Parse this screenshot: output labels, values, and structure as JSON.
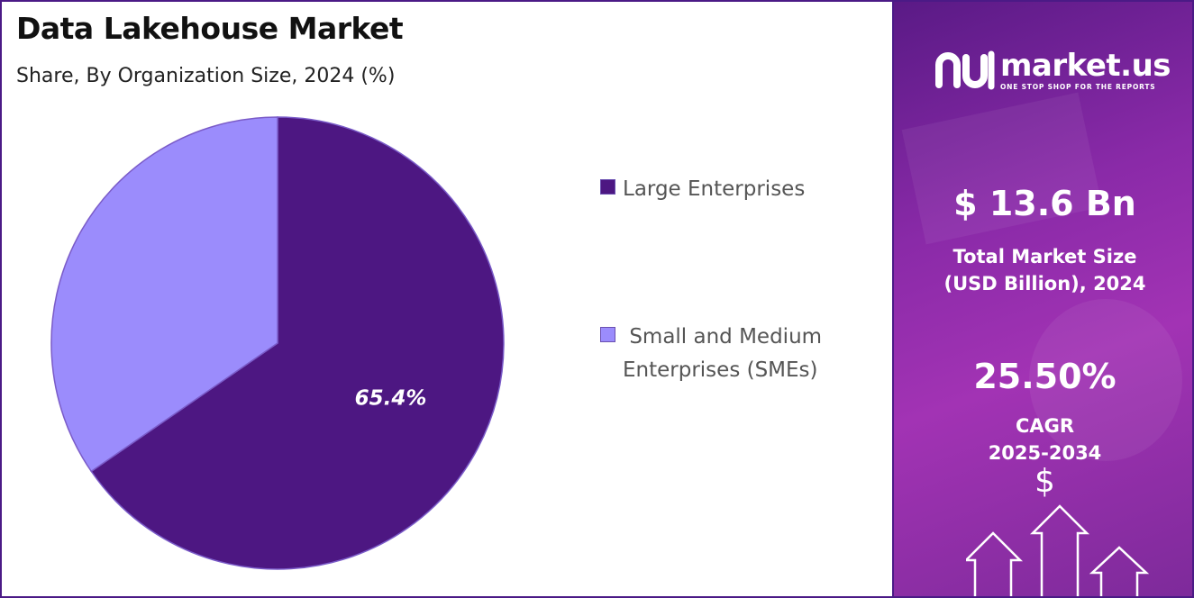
{
  "chart_data": {
    "type": "pie",
    "title": "Data Lakehouse Market",
    "subtitle": "Share, By Organization Size, 2024 (%)",
    "slices": [
      {
        "name": "Large Enterprises",
        "value": 65.4,
        "color": "#4d1782",
        "label": "65.4%"
      },
      {
        "name": "Small and Medium Enterprises (SMEs)",
        "value": 34.6,
        "color": "#9b8cfc",
        "label": ""
      }
    ],
    "legend_position": "right"
  },
  "legend": {
    "items": [
      {
        "label": "Large Enterprises",
        "color": "#4d1782"
      },
      {
        "label": " Small and Medium Enterprises (SMEs)",
        "color": "#9b8cfc"
      }
    ]
  },
  "sidebar": {
    "brand": {
      "name": "market.us",
      "tagline": "ONE STOP SHOP FOR THE REPORTS"
    },
    "market_size": {
      "value": "$ 13.6 Bn",
      "label": "Total Market Size (USD Billion), 2024"
    },
    "cagr": {
      "value": "25.50%",
      "label": "CAGR",
      "period": "2025-2034"
    },
    "dollar_symbol": "$"
  }
}
